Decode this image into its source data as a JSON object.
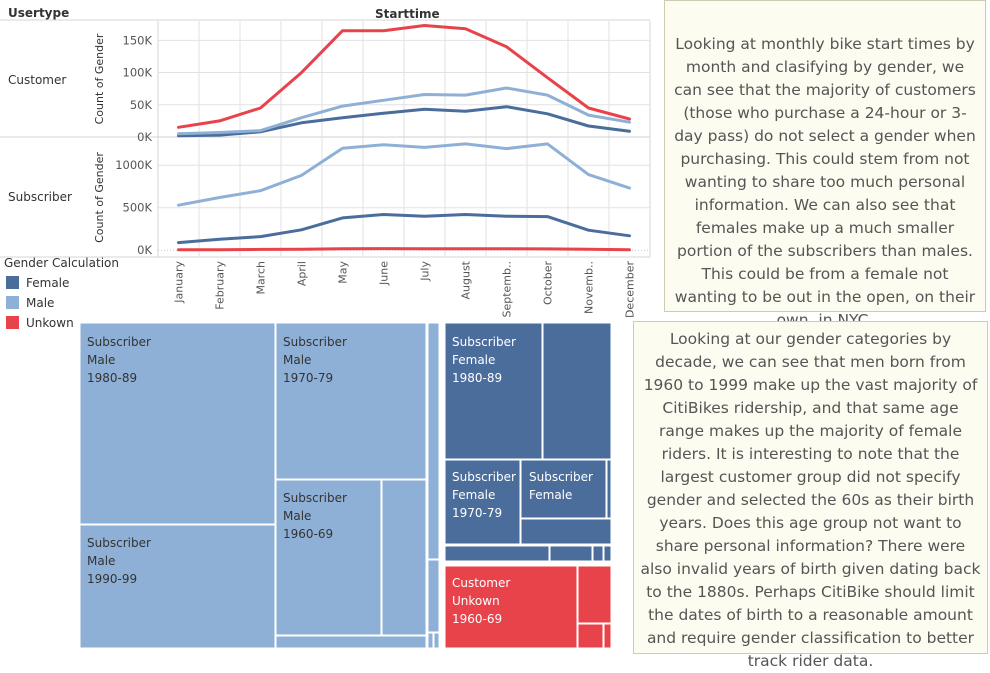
{
  "colors": {
    "Female": "#4a6d9c",
    "Male": "#8fb0d6",
    "Unkown": "#e8424b",
    "grid": "#e2e2e2",
    "axis_text": "#555555"
  },
  "header": {
    "row_field": "Usertype",
    "col_field": "Starttime"
  },
  "chart_data": {
    "type": "line",
    "title": "Starttime",
    "row_dimension": "Usertype",
    "color_dimension": "Gender Calculation",
    "ylabel": "Count of Gender",
    "categories": [
      "January",
      "February",
      "March",
      "April",
      "May",
      "June",
      "July",
      "August",
      "Septemb..",
      "October",
      "Novemb..",
      "December"
    ],
    "panes": [
      {
        "row": "Customer",
        "ylim": [
          0,
          180000
        ],
        "yticks": [
          0,
          50000,
          100000,
          150000
        ],
        "ytick_labels": [
          "0K",
          "50K",
          "100K",
          "150K"
        ],
        "series": [
          {
            "name": "Female",
            "values": [
              2000,
              3000,
              8000,
              22000,
              30000,
              37000,
              43000,
              40000,
              47000,
              36000,
              17000,
              9000
            ]
          },
          {
            "name": "Male",
            "values": [
              5000,
              7000,
              10000,
              30000,
              48000,
              57000,
              66000,
              65000,
              76000,
              65000,
              34000,
              23000
            ]
          },
          {
            "name": "Unkown",
            "values": [
              15000,
              25000,
              45000,
              100000,
              165000,
              165000,
              173000,
              168000,
              140000,
              92000,
              45000,
              28000
            ]
          }
        ]
      },
      {
        "row": "Subscriber",
        "ylim": [
          -80000,
          1320000
        ],
        "yticks": [
          0,
          500000,
          1000000
        ],
        "ytick_labels": [
          "0K",
          "500K",
          "1000K"
        ],
        "series": [
          {
            "name": "Female",
            "values": [
              90000,
              130000,
              160000,
              240000,
              380000,
              420000,
              400000,
              420000,
              400000,
              395000,
              235000,
              170000
            ]
          },
          {
            "name": "Male",
            "values": [
              530000,
              620000,
              700000,
              880000,
              1200000,
              1240000,
              1210000,
              1250000,
              1195000,
              1250000,
              890000,
              730000
            ]
          },
          {
            "name": "Unkown",
            "values": [
              5000,
              6000,
              9000,
              12000,
              16000,
              19000,
              17000,
              18000,
              17000,
              15000,
              10000,
              6000
            ]
          }
        ]
      }
    ],
    "legend": {
      "title": "Gender Calculation",
      "entries": [
        "Female",
        "Male",
        "Unkown"
      ],
      "position": "bottom-left"
    }
  },
  "treemap": {
    "tiles": [
      {
        "label": [
          "Subscriber",
          "Male",
          "1980-89"
        ],
        "color": "Male"
      },
      {
        "label": [
          "Subscriber",
          "Male",
          "1970-79"
        ],
        "color": "Male"
      },
      {
        "label": [
          "Subscriber",
          "Male",
          "1960-69"
        ],
        "color": "Male"
      },
      {
        "label": [
          "Subscriber",
          "Male",
          "1990-99"
        ],
        "color": "Male"
      },
      {
        "label": [
          "Subscriber",
          "Female",
          "1980-89"
        ],
        "color": "Female"
      },
      {
        "label": [
          "Subscriber",
          "Female",
          "1970-79"
        ],
        "color": "Female"
      },
      {
        "label": [
          "Subscriber",
          "Female"
        ],
        "color": "Female"
      },
      {
        "label": [
          "Customer",
          "Unkown",
          "1960-69"
        ],
        "color": "Unkown"
      }
    ]
  },
  "notes": {
    "top": "Looking at monthly bike start times by month and clasifying by gender, we can see that the majority of customers (those who purchase a 24-hour or 3-day pass) do not select a gender when purchasing. This could stem from not wanting to share too much personal information. We can also see that females make up a much smaller portion of the subscribers than males. This could be from a female not wanting to be out in the open, on their own, in NYC.",
    "bottom": "Looking at our gender categories by decade, we can see that men born from 1960 to 1999 make up the vast majority of CitiBikes ridership, and that same age range makes up the majority of female riders. It is interesting to note that the largest customer group did not specify gender and selected the 60s as their birth years. Does this age group not want to share personal information? There were also invalid years of birth given dating back to the 1880s. Perhaps CitiBike should limit the dates of birth to a reasonable amount and require gender classification to better track rider data."
  }
}
